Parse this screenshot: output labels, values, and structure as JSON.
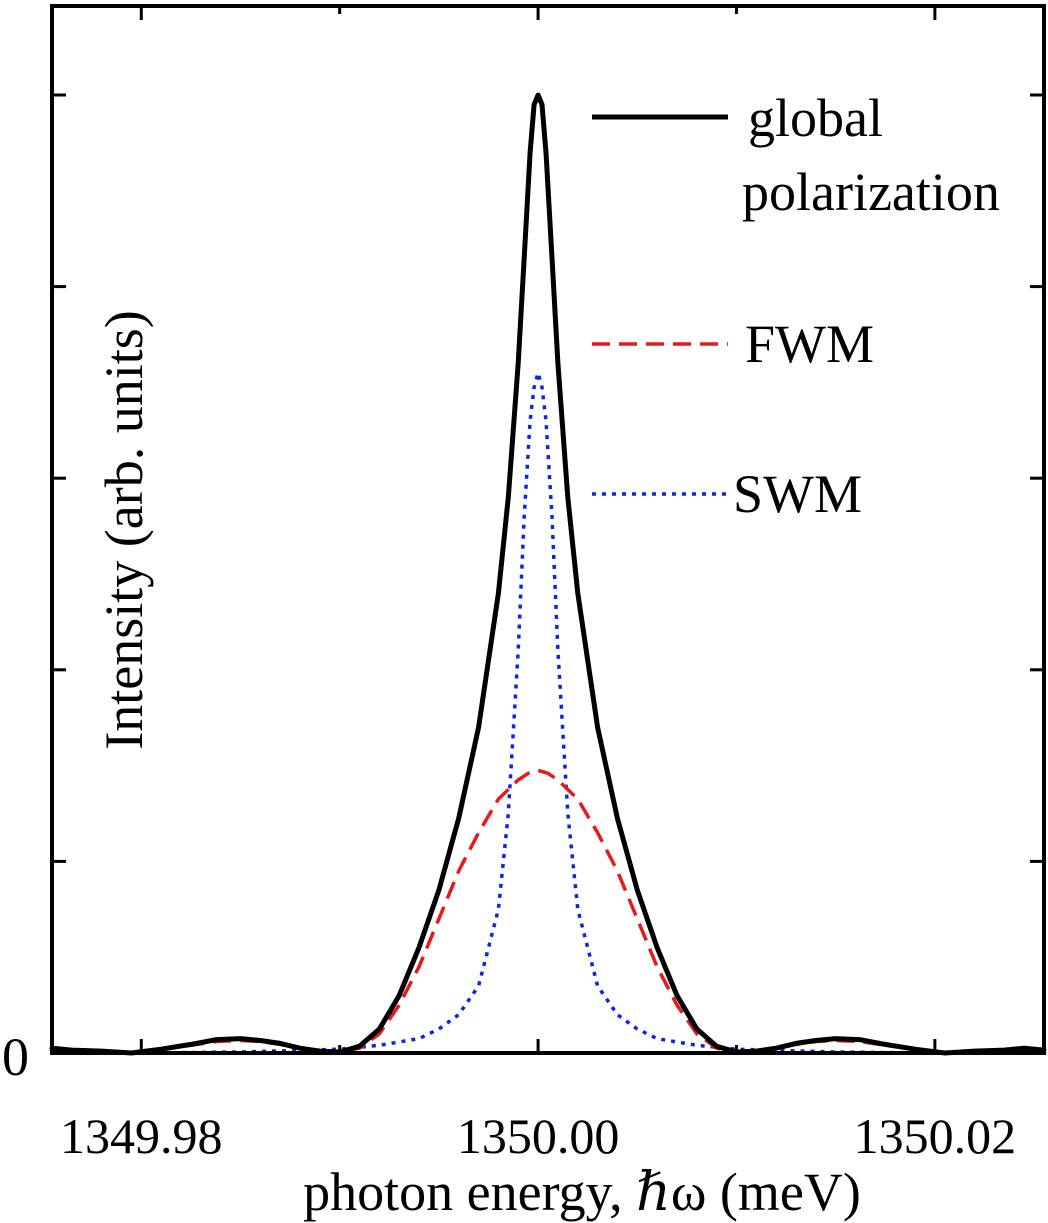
{
  "chart_data": {
    "type": "line",
    "title": "",
    "xlabel": "photon energy, ℏω (meV)",
    "ylabel": "Intensity (arb. units)",
    "xlim": [
      1349.9755,
      1350.0255
    ],
    "ylim": [
      0,
      1.0
    ],
    "x_ticks": [
      1349.98,
      1350.0,
      1350.02
    ],
    "x_tick_labels": [
      "1349.98",
      "1350.00",
      "1350.02"
    ],
    "y_tick_labels": [
      "0"
    ],
    "y_minor_ticks": [
      0.2,
      0.4,
      0.6,
      0.8
    ],
    "grid": false,
    "legend_position": "top-right",
    "series": [
      {
        "name": "global polarization",
        "legend_label_lines": [
          "global",
          "polarization"
        ],
        "color": "#000000",
        "style": "solid",
        "x": [
          1349.9755,
          1349.9765,
          1349.978,
          1349.9795,
          1349.981,
          1349.9825,
          1349.9838,
          1349.985,
          1349.986,
          1349.987,
          1349.988,
          1349.989,
          1349.99,
          1349.991,
          1349.992,
          1349.993,
          1349.994,
          1349.995,
          1349.996,
          1349.997,
          1349.998,
          1349.9985,
          1349.999,
          1349.9993,
          1349.9996,
          1349.9998,
          1350.0,
          1350.0002,
          1350.0004,
          1350.0007,
          1350.001,
          1350.0015,
          1350.002,
          1350.003,
          1350.004,
          1350.005,
          1350.006,
          1350.007,
          1350.008,
          1350.009,
          1350.01,
          1350.011,
          1350.012,
          1350.013,
          1350.014,
          1350.015,
          1350.0162,
          1350.0175,
          1350.019,
          1350.0205,
          1350.022,
          1350.0235,
          1350.0245,
          1350.0255
        ],
        "y": [
          0.005,
          0.003,
          0.002,
          0.0,
          0.004,
          0.009,
          0.014,
          0.015,
          0.013,
          0.01,
          0.005,
          0.002,
          0.001,
          0.007,
          0.025,
          0.06,
          0.11,
          0.17,
          0.245,
          0.34,
          0.48,
          0.58,
          0.72,
          0.83,
          0.94,
          0.99,
          1.0,
          0.99,
          0.94,
          0.83,
          0.72,
          0.58,
          0.48,
          0.34,
          0.245,
          0.17,
          0.11,
          0.06,
          0.025,
          0.007,
          0.001,
          0.002,
          0.005,
          0.01,
          0.013,
          0.015,
          0.014,
          0.009,
          0.004,
          0.0,
          0.002,
          0.003,
          0.005,
          0.003
        ]
      },
      {
        "name": "FWM",
        "color": "#e41a1c",
        "style": "dashed",
        "x": [
          1349.9755,
          1349.978,
          1349.9795,
          1349.981,
          1349.9825,
          1349.9838,
          1349.985,
          1349.986,
          1349.987,
          1349.988,
          1349.989,
          1349.99,
          1349.991,
          1349.992,
          1349.993,
          1349.994,
          1349.995,
          1349.996,
          1349.997,
          1349.998,
          1349.999,
          1349.9995,
          1350.0,
          1350.0005,
          1350.001,
          1350.002,
          1350.003,
          1350.004,
          1350.005,
          1350.006,
          1350.007,
          1350.008,
          1350.009,
          1350.01,
          1350.011,
          1350.012,
          1350.013,
          1350.014,
          1350.015,
          1350.0162,
          1350.0175,
          1350.019,
          1350.0205,
          1350.022,
          1350.0235,
          1350.0255
        ],
        "y": [
          0.004,
          0.002,
          0.0,
          0.004,
          0.008,
          0.012,
          0.013,
          0.012,
          0.009,
          0.005,
          0.002,
          0.001,
          0.005,
          0.02,
          0.05,
          0.09,
          0.14,
          0.19,
          0.23,
          0.265,
          0.285,
          0.292,
          0.295,
          0.292,
          0.285,
          0.265,
          0.23,
          0.19,
          0.14,
          0.09,
          0.05,
          0.02,
          0.005,
          0.001,
          0.002,
          0.005,
          0.009,
          0.012,
          0.013,
          0.012,
          0.008,
          0.004,
          0.0,
          0.002,
          0.003,
          0.004
        ]
      },
      {
        "name": "SWM",
        "color": "#0b24e6",
        "style": "dotted",
        "x": [
          1349.9755,
          1349.98,
          1349.985,
          1349.99,
          1349.992,
          1349.994,
          1349.995,
          1349.996,
          1349.997,
          1349.998,
          1349.9985,
          1349.999,
          1349.9993,
          1349.9996,
          1349.9998,
          1350.0,
          1350.0002,
          1350.0004,
          1350.0007,
          1350.001,
          1350.0015,
          1350.002,
          1350.003,
          1350.004,
          1350.005,
          1350.006,
          1350.008,
          1350.01,
          1350.015,
          1350.02,
          1350.0255
        ],
        "y": [
          0.0,
          0.0,
          0.001,
          0.004,
          0.008,
          0.015,
          0.025,
          0.04,
          0.07,
          0.15,
          0.25,
          0.42,
          0.56,
          0.66,
          0.695,
          0.71,
          0.695,
          0.66,
          0.56,
          0.42,
          0.25,
          0.15,
          0.07,
          0.04,
          0.025,
          0.015,
          0.008,
          0.004,
          0.001,
          0.0,
          0.0
        ]
      }
    ]
  }
}
